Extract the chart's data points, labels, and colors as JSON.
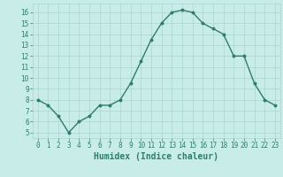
{
  "x": [
    0,
    1,
    2,
    3,
    4,
    5,
    6,
    7,
    8,
    9,
    10,
    11,
    12,
    13,
    14,
    15,
    16,
    17,
    18,
    19,
    20,
    21,
    22,
    23
  ],
  "y": [
    8.0,
    7.5,
    6.5,
    5.0,
    6.0,
    6.5,
    7.5,
    7.5,
    8.0,
    9.5,
    11.5,
    13.5,
    15.0,
    16.0,
    16.2,
    16.0,
    15.0,
    14.5,
    14.0,
    12.0,
    12.0,
    9.5,
    8.0,
    7.5
  ],
  "line_color": "#2e7d6e",
  "marker": "o",
  "marker_size": 1.8,
  "linewidth": 1.0,
  "xlabel": "Humidex (Indice chaleur)",
  "xlim": [
    -0.5,
    23.5
  ],
  "ylim": [
    4.5,
    16.8
  ],
  "yticks": [
    5,
    6,
    7,
    8,
    9,
    10,
    11,
    12,
    13,
    14,
    15,
    16
  ],
  "xticks": [
    0,
    1,
    2,
    3,
    4,
    5,
    6,
    7,
    8,
    9,
    10,
    11,
    12,
    13,
    14,
    15,
    16,
    17,
    18,
    19,
    20,
    21,
    22,
    23
  ],
  "bg_color": "#c8ece8",
  "grid_color": "#aad4d0",
  "tick_label_color": "#2e7d6e",
  "xlabel_color": "#2e7d6e",
  "xlabel_fontsize": 7,
  "tick_fontsize": 5.5
}
